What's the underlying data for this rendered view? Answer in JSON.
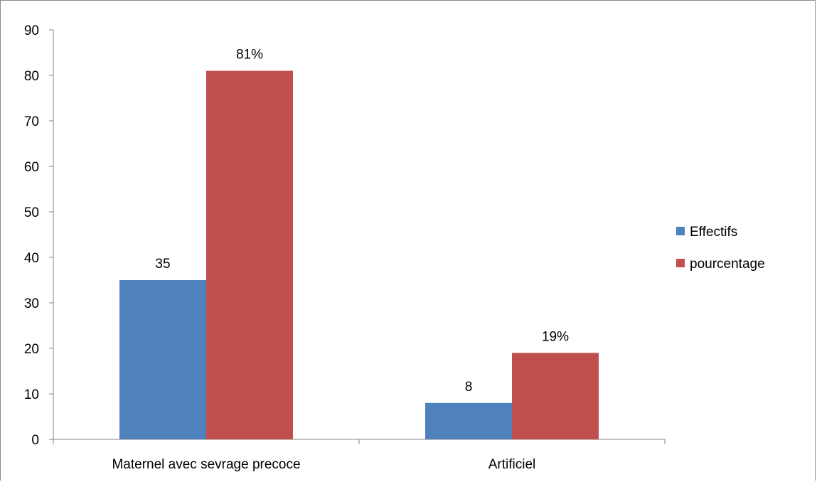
{
  "chart_data": {
    "type": "bar",
    "title": "",
    "xlabel": "",
    "ylabel": "",
    "categories": [
      "Maternel avec sevrage precoce",
      "Artificiel"
    ],
    "series": [
      {
        "name": "Effectifs",
        "color": "#4F81BD",
        "values": [
          35,
          8
        ],
        "labels": [
          "35",
          "8"
        ]
      },
      {
        "name": "pourcentage",
        "color": "#C0504D",
        "values": [
          81,
          19
        ],
        "labels": [
          "81%",
          "19%"
        ]
      }
    ],
    "ylim": [
      0,
      90
    ],
    "yticks": [
      0,
      10,
      20,
      30,
      40,
      50,
      60,
      70,
      80,
      90
    ],
    "ytick_labels": [
      "0",
      "10",
      "20",
      "30",
      "40",
      "50",
      "60",
      "70",
      "80",
      "90"
    ],
    "grid": false,
    "legend_position": "right"
  }
}
